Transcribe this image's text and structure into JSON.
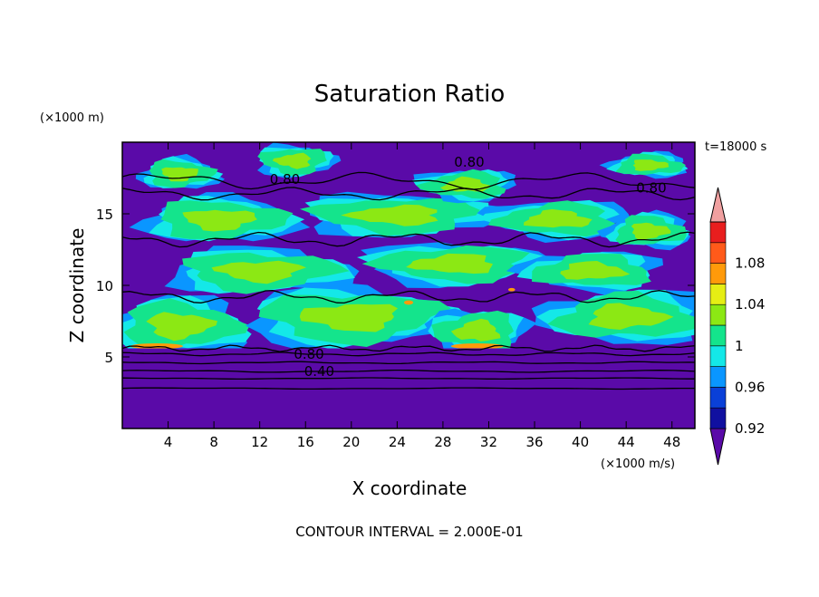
{
  "chart_data": {
    "type": "heatmap",
    "title": "Saturation Ratio",
    "xlabel": "X coordinate",
    "ylabel": "Z coordinate",
    "x_unit_label": "(×1000 m/s)",
    "y_unit_label": "(×1000 m)",
    "time_label": "t=18000 s",
    "footer": "CONTOUR INTERVAL = 2.000E-01",
    "xlim": [
      0,
      50
    ],
    "ylim": [
      0,
      20
    ],
    "x_ticks": [
      4,
      8,
      12,
      16,
      20,
      24,
      28,
      32,
      36,
      40,
      44,
      48
    ],
    "y_ticks": [
      5,
      10,
      15
    ],
    "contour_labels": [
      {
        "text": "0.80",
        "x": 16.3,
        "z": 5.2
      },
      {
        "text": "0.40",
        "x": 17.2,
        "z": 4.0
      },
      {
        "text": "0.80",
        "x": 14.2,
        "z": 17.4
      },
      {
        "text": "0.80",
        "x": 30.3,
        "z": 18.6
      },
      {
        "text": "0.80",
        "x": 46.2,
        "z": 16.8
      }
    ],
    "colorbar": {
      "levels": [
        0.92,
        0.94,
        0.96,
        0.98,
        1.0,
        1.02,
        1.04,
        1.06,
        1.08,
        1.1
      ],
      "tick_labels": [
        "0.92",
        "0.96",
        "1",
        "1.04",
        "1.08"
      ],
      "colors": [
        "#5a0aa8",
        "#1010a0",
        "#0a40d8",
        "#0a96ff",
        "#14e8e8",
        "#14e48c",
        "#8ce814",
        "#e6ee14",
        "#ff9a0a",
        "#ff5a1a",
        "#e81e1e",
        "#f0a0a0"
      ]
    },
    "field": {
      "base_band_top": 5.6,
      "top_band_bottom": 17.3,
      "moist_patches": [
        {
          "x": 8.5,
          "z": 14.6,
          "rx": 5.5,
          "rz": 1.3
        },
        {
          "x": 24,
          "z": 14.9,
          "rx": 7,
          "rz": 1.2
        },
        {
          "x": 38,
          "z": 14.6,
          "rx": 5,
          "rz": 1.1
        },
        {
          "x": 46,
          "z": 13.8,
          "rx": 3,
          "rz": 1.0
        },
        {
          "x": 12,
          "z": 11.0,
          "rx": 6.5,
          "rz": 1.3
        },
        {
          "x": 29,
          "z": 11.5,
          "rx": 6.5,
          "rz": 1.2
        },
        {
          "x": 41,
          "z": 11.0,
          "rx": 5,
          "rz": 1.1
        },
        {
          "x": 5,
          "z": 7.2,
          "rx": 5,
          "rz": 1.6
        },
        {
          "x": 20,
          "z": 7.8,
          "rx": 7.5,
          "rz": 1.7
        },
        {
          "x": 31,
          "z": 6.8,
          "rx": 3.5,
          "rz": 1.3
        },
        {
          "x": 44,
          "z": 7.8,
          "rx": 6,
          "rz": 1.5
        },
        {
          "x": 5,
          "z": 17.8,
          "rx": 2.8,
          "rz": 0.9
        },
        {
          "x": 15,
          "z": 18.7,
          "rx": 2.8,
          "rz": 0.9
        },
        {
          "x": 30,
          "z": 17.0,
          "rx": 3.5,
          "rz": 0.9
        },
        {
          "x": 46,
          "z": 18.4,
          "rx": 2.8,
          "rz": 0.7
        }
      ]
    }
  }
}
